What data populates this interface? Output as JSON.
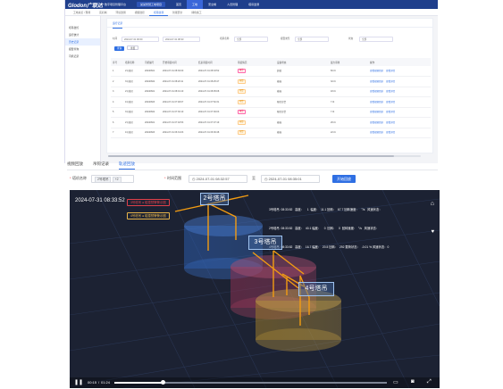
{
  "topbar": {
    "logo": "Glodon广联达",
    "platform": "数字项目管理平台",
    "project": "某某智慧工地项目",
    "nav": [
      "首页",
      "工地",
      "安全帽",
      "人员管理",
      "塔吊监测"
    ]
  },
  "tabs": [
    "工地总览 / 现场",
    "实名制",
    "环境监测",
    "视频监控",
    "塔吊监测",
    "智能安全",
    "绿色施工"
  ],
  "sidebar": [
    "塔吊监控",
    "运行统计",
    "历史记录",
    "报警查询",
    "司机记录"
  ],
  "panel": {
    "tab": "运行记录",
    "filters": {
      "time_label": "时间",
      "time_from": "2024-07-31 00:00",
      "time_to": "2024-07-31 08:33",
      "device_label": "塔吊名称",
      "device_value": "全部",
      "alarm_label": "报警类型",
      "alarm_value": "全部",
      "status_label": "状态",
      "status_value": "全部"
    },
    "query_btn": "查询",
    "reset_btn": "重置",
    "columns": [
      "序号",
      "塔吊名称",
      "司机编号",
      "开始吊装时间",
      "结束吊装时间",
      "吊装情况",
      "设备状态",
      "最大吊重",
      "操作"
    ],
    "rows": [
      {
        "no": "1",
        "name": "2号塔吊",
        "driver": "20240601",
        "start": "2024-07-31 08:30:00",
        "end": "2024-07-31 08:33:52",
        "tag": "报警",
        "tagtype": "b1",
        "status": "超载",
        "weight": "60.0t",
        "ops": [
          "查看视频回放",
          "查看详情"
        ]
      },
      {
        "no": "2",
        "name": "3号塔吊",
        "driver": "20240602",
        "start": "2024-07-31 08:20:11",
        "end": "2024-07-31 08:25:47",
        "tag": "预警",
        "tagtype": "b2",
        "status": "碰撞",
        "weight": "32.0t",
        "ops": [
          "查看视频回放",
          "查看详情"
        ]
      },
      {
        "no": "3",
        "name": "2号塔吊",
        "driver": "20240601",
        "start": "2024-07-31 08:01:10",
        "end": "2024-07-31 08:05:08",
        "tag": "预警",
        "tagtype": "b2",
        "status": "碰撞",
        "weight": "18.0t",
        "ops": [
          "查看视频回放",
          "查看详情"
        ]
      },
      {
        "no": "4",
        "name": "4号塔吊",
        "driver": "20240603",
        "start": "2024-07-31 07:48:07",
        "end": "2024-07-31 07:52:31",
        "tag": "预警",
        "tagtype": "b2",
        "status": "限位告警",
        "weight": "7.0t",
        "ops": [
          "查看视频回放",
          "查看详情"
        ]
      },
      {
        "no": "5",
        "name": "3号塔吊",
        "driver": "20240602",
        "start": "2024-07-31 07:30:10",
        "end": "2024-07-31 07:36:03",
        "tag": "报警",
        "tagtype": "b1",
        "status": "限位告警",
        "weight": "7.0t",
        "ops": [
          "查看视频回放",
          "查看详情"
        ]
      },
      {
        "no": "6",
        "name": "2号塔吊",
        "driver": "20240601",
        "start": "2024-07-31 07:02:53",
        "end": "2024-07-31 07:07:19",
        "tag": "预警",
        "tagtype": "b2",
        "status": "碰撞",
        "weight": "26.0t",
        "ops": [
          "查看视频回放",
          "查看详情"
        ]
      },
      {
        "no": "7",
        "name": "4号塔吊",
        "driver": "20240603",
        "start": "2024-07-31 06:31:03",
        "end": "2024-07-31 06:36:48",
        "tag": "预警",
        "tagtype": "b2",
        "status": "碰撞",
        "weight": "22.0t",
        "ops": [
          "查看视频回放",
          "查看详情"
        ]
      }
    ]
  },
  "section2": {
    "tabs": [
      "视频回放",
      "吊钩记录",
      "轨迹回放"
    ],
    "active_tab": 2,
    "crane_label": "塔机名称",
    "crane_tag": "2号塔吊",
    "crane_more": "+2",
    "time_label": "时间范围",
    "time_from": "2024-07-01 08:32:57",
    "time_sep": "至",
    "time_to": "2024-07-01 08:35:01",
    "play_btn": "开始回放"
  },
  "video": {
    "timestamp": "2024-07-31 08:33:52",
    "legend": [
      {
        "text": "3号塔吊 ● 碰撞预警警示圈",
        "color": "#e0404a"
      },
      {
        "text": "4号塔吊 ● 碰撞预警警示圈",
        "color": "#e8b54a"
      }
    ],
    "info_lines": [
      "3号塔吊  08:33:52   高度：    1  幅度：  11.1 回转：  67.7 回转速度：   °/s   风速状态：",
      "2号塔吊  08:33:52   高度：  40.1 幅度：    0  回转：   0  回转速度：  °/s   风速状态：",
      "4号塔吊  08:33:52   高度：  16.7 幅度：  20.5 回转：  292 载荷状态：  -0.01 % 风速状态：0"
    ],
    "crane_labels": [
      "2号塔吊",
      "3号塔吊",
      "4号塔吊"
    ],
    "time_current": "00:15",
    "time_total": "01:24",
    "progress": 0.18
  }
}
